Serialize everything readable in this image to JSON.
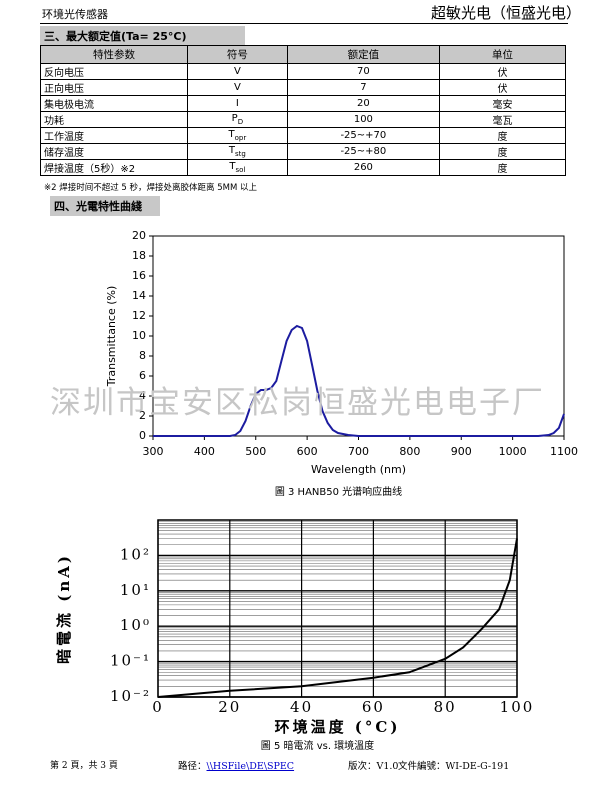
{
  "header": {
    "left": "环境光传感器",
    "right": "超敏光电（恒盛光电）"
  },
  "section3": {
    "title": "三、最大额定值(Ta= 25°C)",
    "note": "※2 焊接时间不超过 5 秒，焊接处离胶体距离 5MM 以上"
  },
  "table": {
    "headers": [
      "特性参数",
      "符号",
      "额定值",
      "单位"
    ],
    "rows": [
      [
        "反向电压",
        "V",
        "70",
        "伏"
      ],
      [
        "正向电压",
        "V",
        "7",
        "伏"
      ],
      [
        "集电极电流",
        "I",
        "20",
        "毫安"
      ],
      [
        "功耗",
        {
          "text": "P",
          "sub": "D"
        },
        "100",
        "毫瓦"
      ],
      [
        "工作温度",
        {
          "text": "T",
          "sub": "opr"
        },
        "-25~+70",
        "度"
      ],
      [
        "储存温度",
        {
          "text": "T",
          "sub": "stg"
        },
        "-25~+80",
        "度"
      ],
      [
        "焊接温度（5秒）※2",
        {
          "text": "T",
          "sub": "sol"
        },
        "260",
        "度"
      ]
    ]
  },
  "section4": {
    "title": "四、光電特性曲綫"
  },
  "watermark": "深圳市宝安区松岗恒盛光电电子厂",
  "chart_data": [
    {
      "type": "line",
      "caption": "圖 3   HANB50 光谱响应曲线",
      "x_label": "Wavelength (nm)",
      "y_label": "Transmittance (%)",
      "color": "#1c1ca0",
      "x": [
        300,
        400,
        450,
        460,
        470,
        480,
        490,
        500,
        510,
        520,
        530,
        540,
        550,
        560,
        570,
        580,
        590,
        600,
        610,
        620,
        630,
        640,
        650,
        660,
        680,
        700,
        800,
        900,
        1000,
        1050,
        1070,
        1080,
        1090,
        1100
      ],
      "values": [
        0,
        0,
        0,
        0.1,
        0.5,
        1.5,
        3,
        4.2,
        4.6,
        4.6,
        4.8,
        5.5,
        7.5,
        9.5,
        10.6,
        11,
        10.8,
        9.5,
        7,
        4.5,
        2.5,
        1.3,
        0.6,
        0.3,
        0.1,
        0,
        0,
        0,
        0,
        0,
        0.1,
        0.3,
        0.8,
        2.2
      ],
      "xlim": [
        300,
        1100
      ],
      "xticks": [
        300,
        400,
        500,
        600,
        700,
        800,
        900,
        1000,
        1100
      ],
      "ylim": [
        0,
        20
      ],
      "yticks": [
        0,
        2,
        4,
        6,
        8,
        10,
        12,
        14,
        16,
        18,
        20
      ],
      "grid": false
    },
    {
      "type": "line",
      "caption": "圖 5   暗電流  vs.  環境溫度",
      "x_label": "环境温度 (°C)",
      "y_label": "暗電流 (nA)",
      "color": "#000000",
      "log_scale_y": true,
      "x": [
        0,
        20,
        40,
        60,
        70,
        80,
        85,
        90,
        95,
        98,
        100
      ],
      "values": [
        0.01,
        0.015,
        0.02,
        0.035,
        0.05,
        0.12,
        0.25,
        0.8,
        3,
        20,
        300
      ],
      "xlim": [
        0,
        100
      ],
      "xticks": [
        0,
        20,
        40,
        60,
        80,
        100
      ],
      "ylim": [
        0.01,
        1000
      ],
      "yticks": [
        {
          "value": 0.01,
          "label": "10⁻²"
        },
        {
          "value": 0.1,
          "label": "10⁻¹"
        },
        {
          "value": 1,
          "label": "10⁰"
        },
        {
          "value": 10,
          "label": "10¹"
        },
        {
          "value": 100,
          "label": "10²"
        }
      ],
      "grid": true
    }
  ],
  "footer": {
    "page": "第 2 頁，共 3 頁",
    "path_label": "路径：",
    "path": "\\\\HSFile\\DE\\SPEC",
    "version": "版次：V1.0",
    "doc_no": "文件編號：WI-DE-G-191"
  }
}
